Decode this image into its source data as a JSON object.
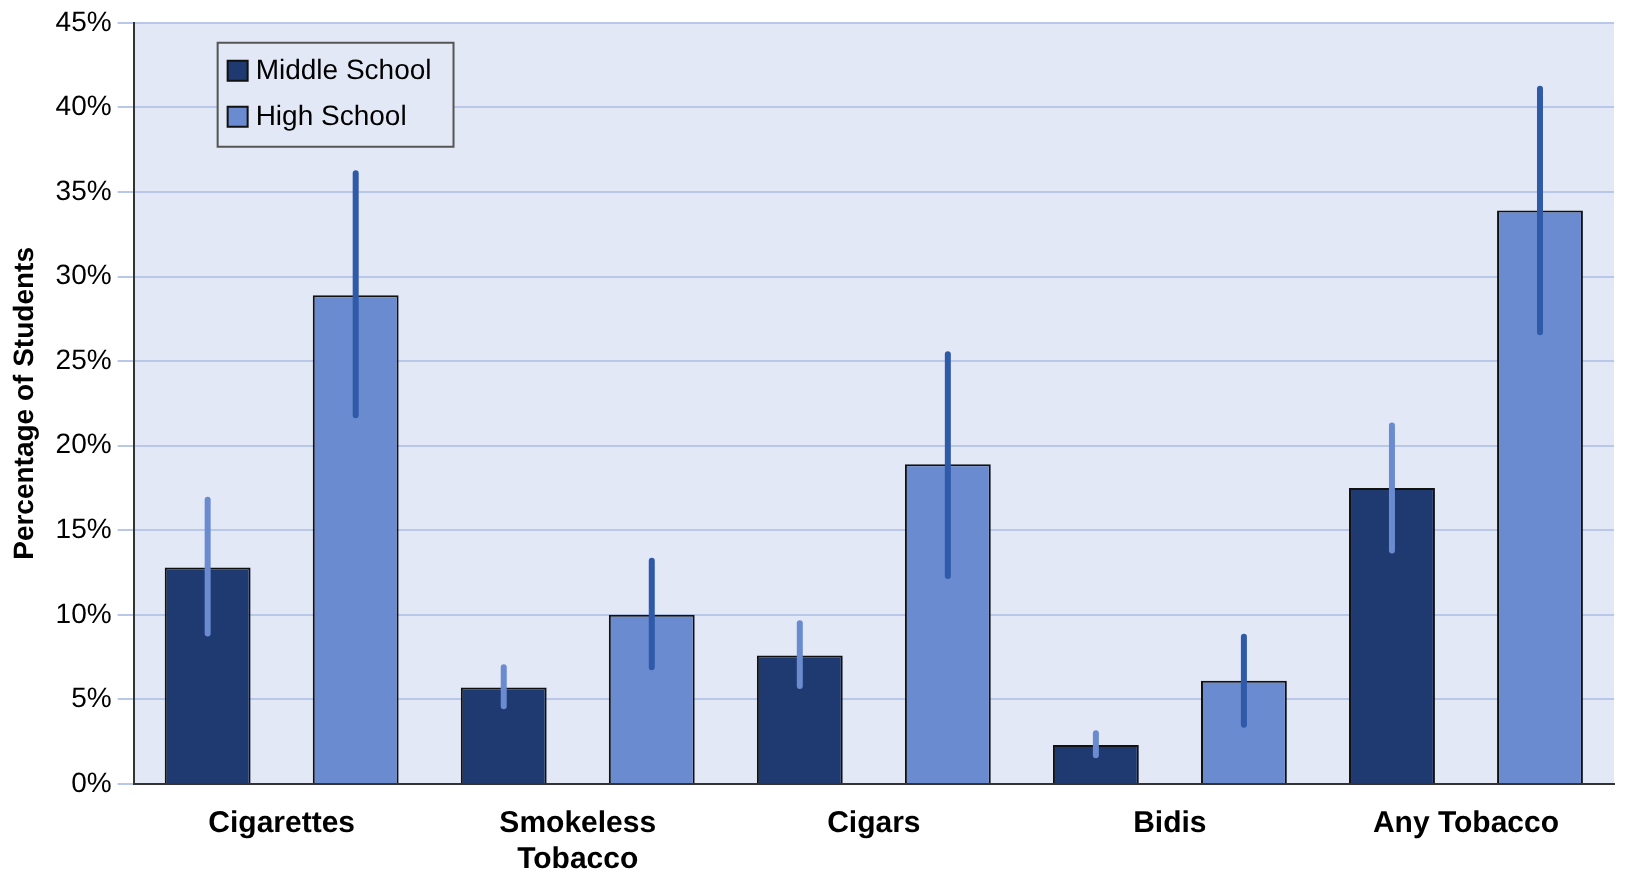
{
  "chart_data": {
    "type": "bar",
    "ylabel": "Percentage of Students",
    "categories": [
      "Cigarettes",
      "Smokeless Tobacco",
      "Cigars",
      "Bidis",
      "Any Tobacco"
    ],
    "series": [
      {
        "name": "Middle School",
        "color": "#1f3a70",
        "values": [
          12.8,
          5.7,
          7.6,
          2.3,
          17.5
        ],
        "errors": [
          [
            8.9,
            16.8
          ],
          [
            4.6,
            6.9
          ],
          [
            5.8,
            9.5
          ],
          [
            1.7,
            3.0
          ],
          [
            13.8,
            21.2
          ]
        ]
      },
      {
        "name": "High School",
        "color": "#6a8bd0",
        "values": [
          28.9,
          10.0,
          18.9,
          6.1,
          33.9
        ],
        "errors": [
          [
            21.8,
            36.1
          ],
          [
            6.9,
            13.2
          ],
          [
            12.3,
            25.4
          ],
          [
            3.5,
            8.7
          ],
          [
            26.7,
            41.1
          ]
        ]
      }
    ],
    "ylim": [
      0,
      45
    ],
    "yticks": [
      {
        "value": 0,
        "label": "0%"
      },
      {
        "value": 5,
        "label": "5%"
      },
      {
        "value": 10,
        "label": "10%"
      },
      {
        "value": 15,
        "label": "15%"
      },
      {
        "value": 20,
        "label": "20%"
      },
      {
        "value": 25,
        "label": "25%"
      },
      {
        "value": 30,
        "label": "30%"
      },
      {
        "value": 35,
        "label": "35%"
      },
      {
        "value": 40,
        "label": "40%"
      },
      {
        "value": 45,
        "label": "45%"
      }
    ],
    "grid": "y",
    "legend": "top left"
  }
}
